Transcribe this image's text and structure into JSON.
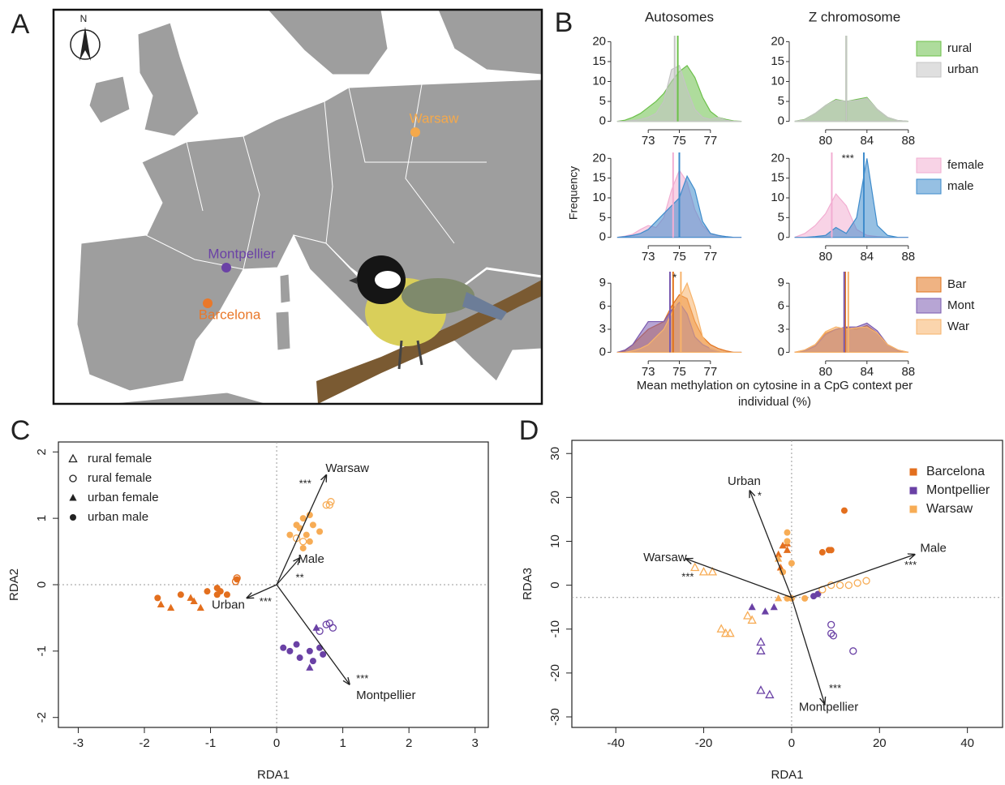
{
  "panel_labels": [
    "A",
    "B",
    "C",
    "D"
  ],
  "map": {
    "north": "N",
    "cities": [
      {
        "name": "Warsaw",
        "color": "#f5a94b"
      },
      {
        "name": "Montpellier",
        "color": "#6b42a6"
      },
      {
        "name": "Barcelona",
        "color": "#e9782a"
      }
    ]
  },
  "chart_data": [
    {
      "type": "density-grid",
      "ylabel": "Frequency",
      "xlabel": "Mean methylation on cytosine in a CpG context per individual (%)",
      "columns": [
        {
          "title": "Autosomes",
          "x": [
            71,
            71.5,
            72,
            72.5,
            73,
            73.5,
            74,
            74.5,
            75,
            75.5,
            76,
            76.5,
            77,
            77.5,
            78,
            78.5,
            79
          ],
          "xlim": [
            70.8,
            79.2
          ],
          "xticks": [
            73,
            75,
            77
          ]
        },
        {
          "title": "Z chromosome",
          "x": [
            77,
            78,
            79,
            80,
            81,
            82,
            83,
            84,
            85,
            86,
            87,
            88
          ],
          "xlim": [
            76.8,
            88.8
          ],
          "xticks": [
            80,
            84,
            88
          ]
        }
      ],
      "rows": [
        {
          "ylim": [
            -1.5,
            21.5
          ],
          "yticks": [
            0,
            5,
            10,
            15,
            20
          ],
          "series": [
            {
              "name": "rural",
              "color": "#6cc04a",
              "values": [
                [
                  0,
                  0.3,
                  1,
                  2,
                  3.5,
                  5,
                  7,
                  10,
                  12.5,
                  14,
                  11,
                  6,
                  2.5,
                  1,
                  0.5,
                  0.1,
                  0
                ],
                [
                  0,
                  0.5,
                  2,
                  4,
                  5.5,
                  5,
                  5.5,
                  6,
                  3,
                  1,
                  0.2,
                  0
                ]
              ],
              "means": [
                74.9,
                82.0
              ]
            },
            {
              "name": "urban",
              "color": "#c4c4c4",
              "values": [
                [
                  0,
                  0,
                  0.2,
                  0.5,
                  1,
                  2,
                  5,
                  13,
                  14,
                  8,
                  3,
                  1,
                  0.5,
                  1,
                  0.3,
                  0,
                  0
                ],
                [
                  0,
                  0.4,
                  2,
                  4,
                  5.3,
                  5,
                  5.3,
                  5.8,
                  3,
                  1,
                  0.2,
                  0
                ]
              ],
              "means": [
                74.7,
                82.0
              ]
            }
          ]
        },
        {
          "ylim": [
            -1.5,
            21.5
          ],
          "yticks": [
            0,
            5,
            10,
            15,
            20
          ],
          "series": [
            {
              "name": "female",
              "color": "#f2aed2",
              "values": [
                [
                  0,
                  0.3,
                  0.8,
                  2,
                  3,
                  2.5,
                  5,
                  12,
                  17,
                  14,
                  7,
                  3,
                  1,
                  0.5,
                  0.2,
                  0,
                  0
                ],
                [
                  0,
                  1,
                  3,
                  6,
                  11,
                  8,
                  2,
                  0.5,
                  0.2,
                  0,
                  0,
                  0
                ]
              ],
              "means": [
                74.6,
                80.6
              ]
            },
            {
              "name": "male",
              "color": "#3f8ccc",
              "values": [
                [
                  0,
                  0.2,
                  0.5,
                  1,
                  2,
                  4,
                  6,
                  8,
                  10,
                  15.5,
                  12,
                  4,
                  1,
                  0.5,
                  0.2,
                  0,
                  0
                ],
                [
                  0,
                  0,
                  0.2,
                  0.5,
                  2.5,
                  1,
                  5,
                  20,
                  3,
                  0.5,
                  0,
                  0
                ]
              ],
              "means": [
                75.0,
                83.7
              ]
            }
          ],
          "annotation": {
            "column": 1,
            "text": "***"
          }
        },
        {
          "ylim": [
            -0.8,
            10.5
          ],
          "yticks": [
            0,
            3,
            6,
            9
          ],
          "series": [
            {
              "name": "Bar",
              "color": "#e2741d",
              "values": [
                [
                  0,
                  0.2,
                  1,
                  2,
                  3,
                  3.5,
                  4,
                  6,
                  7.5,
                  7,
                  4,
                  2,
                  1,
                  0.5,
                  0.2,
                  0,
                  0
                ],
                [
                  0,
                  0.3,
                  1,
                  2.5,
                  3,
                  3.2,
                  3,
                  3.5,
                  2.5,
                  1,
                  0.3,
                  0
                ]
              ],
              "means": [
                74.6,
                81.9
              ]
            },
            {
              "name": "Mont",
              "color": "#7b5bb0",
              "values": [
                [
                  0,
                  0.3,
                  1,
                  2.5,
                  4,
                  4,
                  4,
                  5.5,
                  6.5,
                  5,
                  2,
                  1,
                  0.5,
                  0.2,
                  0,
                  0,
                  0
                ],
                [
                  0,
                  0.2,
                  0.8,
                  2.3,
                  3,
                  3.3,
                  3.3,
                  3.8,
                  2.8,
                  1,
                  0.2,
                  0
                ]
              ],
              "means": [
                74.4,
                81.8
              ]
            },
            {
              "name": "War",
              "color": "#f7b36a",
              "values": [
                [
                  0,
                  0,
                  0.2,
                  0.5,
                  1,
                  2,
                  3,
                  5,
                  7,
                  9,
                  6,
                  2,
                  0.5,
                  0.2,
                  0,
                  0,
                  0
                ],
                [
                  0,
                  0.3,
                  1,
                  2.7,
                  3.3,
                  3,
                  3.2,
                  3.3,
                  2.5,
                  1,
                  0.3,
                  0
                ]
              ],
              "means": [
                75.1,
                82.2
              ]
            }
          ],
          "annotation": {
            "column": 0,
            "text": "*"
          }
        }
      ]
    },
    {
      "type": "biplot",
      "xlabel": "RDA1",
      "ylabel": "RDA2",
      "xlim": [
        -3.3,
        3.2
      ],
      "ylim": [
        -2.15,
        2.15
      ],
      "xticks": [
        -3,
        -2,
        -1,
        0,
        1,
        2,
        3
      ],
      "yticks": [
        -2,
        -1,
        0,
        1,
        2
      ],
      "origin": [
        0,
        0
      ],
      "legend": [
        {
          "label": "rural female",
          "marker": "triangle-open"
        },
        {
          "label": "rural female",
          "marker": "circle-open"
        },
        {
          "label": "urban female",
          "marker": "triangle"
        },
        {
          "label": "urban male",
          "marker": "circle"
        }
      ],
      "arrows": [
        {
          "label": "Warsaw",
          "x": 0.75,
          "y": 1.65,
          "sig": "***"
        },
        {
          "label": "Male",
          "x": 0.35,
          "y": 0.4,
          "sig": "**"
        },
        {
          "label": "Urban",
          "x": -0.45,
          "y": -0.2,
          "sig": "***"
        },
        {
          "label": "Montpellier",
          "x": 1.1,
          "y": -1.5,
          "sig": "***"
        }
      ],
      "groups": [
        {
          "color": "#e36f1e",
          "marker": "triangle",
          "x": [
            -1.75,
            -1.6,
            -1.25,
            -1.3,
            -1.15
          ],
          "y": [
            -0.3,
            -0.35,
            -0.25,
            -0.2,
            -0.35
          ]
        },
        {
          "color": "#e36f1e",
          "marker": "circle",
          "x": [
            -1.8,
            -1.45,
            -1.05,
            -0.9,
            -0.85,
            -0.75,
            -0.6,
            -0.9
          ],
          "y": [
            -0.2,
            -0.15,
            -0.1,
            -0.05,
            -0.1,
            -0.15,
            0.08,
            -0.15
          ]
        },
        {
          "color": "#e36f1e",
          "marker": "circle-open",
          "x": [
            -0.6,
            -0.62
          ],
          "y": [
            0.1,
            0.05
          ]
        },
        {
          "color": "#f7ac55",
          "marker": "circle",
          "x": [
            0.4,
            0.35,
            0.3,
            0.2,
            0.5,
            0.4,
            0.45,
            0.55,
            0.5,
            0.65
          ],
          "y": [
            1.0,
            0.85,
            0.9,
            0.75,
            0.65,
            0.55,
            0.75,
            0.9,
            1.05,
            0.8
          ]
        },
        {
          "color": "#f7ac55",
          "marker": "circle-open",
          "x": [
            0.75,
            0.8,
            0.82,
            0.4,
            0.3
          ],
          "y": [
            1.2,
            1.2,
            1.25,
            0.65,
            0.7
          ]
        },
        {
          "color": "#6a41a5",
          "marker": "circle",
          "x": [
            0.1,
            0.2,
            0.3,
            0.35,
            0.5,
            0.65,
            0.55,
            0.7
          ],
          "y": [
            -0.95,
            -1.0,
            -0.9,
            -1.1,
            -1.0,
            -0.95,
            -1.15,
            -1.05
          ]
        },
        {
          "color": "#6a41a5",
          "marker": "triangle",
          "x": [
            0.5,
            0.6
          ],
          "y": [
            -1.25,
            -0.65
          ]
        },
        {
          "color": "#6a41a5",
          "marker": "circle-open",
          "x": [
            0.75,
            0.85,
            0.8,
            0.65
          ],
          "y": [
            -0.6,
            -0.65,
            -0.58,
            -0.7
          ]
        }
      ]
    },
    {
      "type": "biplot",
      "xlabel": "RDA1",
      "ylabel": "RDA3",
      "xlim": [
        -50,
        48
      ],
      "ylim": [
        -32.4,
        33
      ],
      "xticks": [
        -40,
        -20,
        0,
        20,
        40
      ],
      "yticks": [
        -30,
        -20,
        -10,
        0,
        10,
        20,
        30
      ],
      "origin": [
        0,
        -2.8
      ],
      "arrows": [
        {
          "label": "Urban",
          "x": -9.5,
          "y": 21.5,
          "sig": "*"
        },
        {
          "label": "Warsaw",
          "x": -24,
          "y": 6,
          "sig": "***"
        },
        {
          "label": "Male",
          "x": 28,
          "y": 7,
          "sig": "***"
        },
        {
          "label": "Montpellier",
          "x": 7.5,
          "y": -27,
          "sig": "***"
        }
      ],
      "series": [
        {
          "name": "Barcelona",
          "color": "#e36f1e",
          "groups": [
            {
              "marker": "circle",
              "x": [
                12,
                7,
                8.5,
                9
              ],
              "y": [
                17,
                7.5,
                8,
                8
              ]
            },
            {
              "marker": "triangle",
              "x": [
                -2,
                -1,
                -3,
                -2.5,
                -1
              ],
              "y": [
                9,
                9.5,
                7,
                4,
                8
              ]
            }
          ]
        },
        {
          "name": "Montpellier",
          "color": "#6a41a5",
          "groups": [
            {
              "marker": "circle-open",
              "x": [
                9,
                9,
                14,
                9.5
              ],
              "y": [
                -9,
                -11,
                -15,
                -11.5
              ]
            },
            {
              "marker": "triangle-open",
              "x": [
                -7,
                -5,
                -7,
                -7
              ],
              "y": [
                -24,
                -25,
                -15,
                -13
              ]
            },
            {
              "marker": "triangle",
              "x": [
                -9,
                -6,
                -4
              ],
              "y": [
                -5,
                -6,
                -5
              ]
            },
            {
              "marker": "circle",
              "x": [
                5,
                6
              ],
              "y": [
                -2.5,
                -2
              ]
            }
          ]
        },
        {
          "name": "Warsaw",
          "color": "#f7ac55",
          "groups": [
            {
              "marker": "circle-open",
              "x": [
                7,
                9,
                11,
                13,
                15,
                17
              ],
              "y": [
                -1,
                0,
                0,
                0,
                0.5,
                1
              ]
            },
            {
              "marker": "triangle-open",
              "x": [
                -22,
                -20,
                -18,
                -15,
                -14,
                -16,
                -10,
                -9
              ],
              "y": [
                4,
                3,
                3,
                -11,
                -11,
                -10,
                -7,
                -8
              ]
            },
            {
              "marker": "circle",
              "x": [
                -1,
                -1,
                -2,
                0,
                0,
                3,
                -1
              ],
              "y": [
                12,
                10,
                3,
                5,
                -3,
                -3,
                -3
              ]
            },
            {
              "marker": "triangle",
              "x": [
                -3,
                -3
              ],
              "y": [
                6,
                -3
              ]
            }
          ]
        }
      ]
    }
  ]
}
